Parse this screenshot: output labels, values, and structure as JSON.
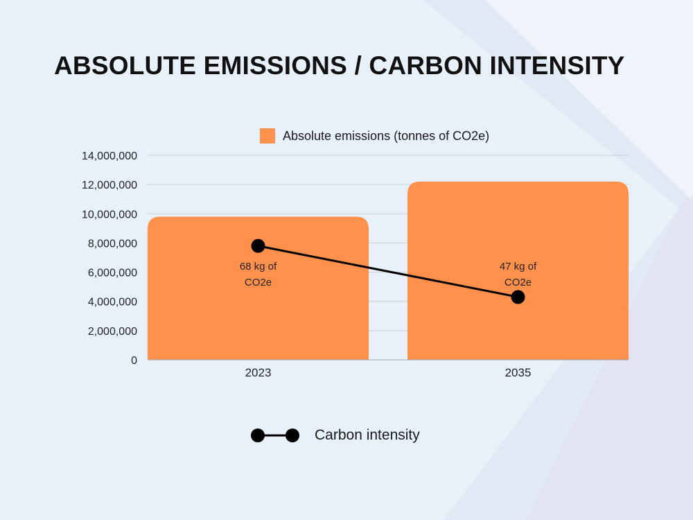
{
  "title": "ABSOLUTE EMISSIONS / CARBON INTENSITY",
  "colors": {
    "background": "#e8f1f9",
    "bar": "#ff914d",
    "line": "#000000",
    "grid": "#c8d0d8",
    "text": "#111111"
  },
  "chart_data": {
    "type": "bar",
    "title": "ABSOLUTE EMISSIONS / CARBON INTENSITY",
    "categories": [
      "2023",
      "2035"
    ],
    "series": [
      {
        "name": "Absolute emissions (tonnes of CO2e)",
        "type": "bar",
        "values": [
          9800000,
          12200000
        ]
      },
      {
        "name": "Carbon intensity",
        "type": "line",
        "values": [
          7800000,
          4300000
        ],
        "labels": [
          "68 kg of CO2e",
          "47 kg of CO2e"
        ]
      }
    ],
    "ylim": [
      0,
      14000000
    ],
    "yticks": [
      0,
      2000000,
      4000000,
      6000000,
      8000000,
      10000000,
      12000000,
      14000000
    ],
    "ytick_labels": [
      "0",
      "2,000,000",
      "4,000,000",
      "6,000,000",
      "8,000,000",
      "10,000,000",
      "12,000,000",
      "14,000,000"
    ],
    "grid": true,
    "xlabel": "",
    "ylabel": "",
    "legend": [
      {
        "label": "Absolute emissions (tonnes of CO2e)",
        "marker": "square",
        "placement": "top"
      },
      {
        "label": "Carbon intensity",
        "marker": "line-dots",
        "placement": "bottom"
      }
    ]
  }
}
